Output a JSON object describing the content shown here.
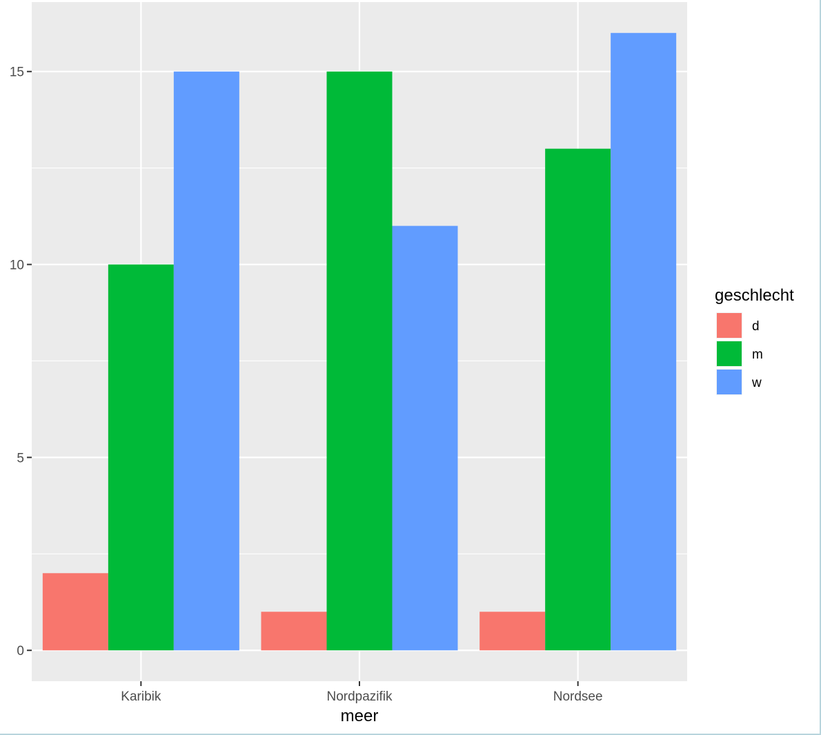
{
  "chart_data": {
    "type": "bar",
    "title": "",
    "xlabel": "meer",
    "ylabel": "",
    "categories": [
      "Karibik",
      "Nordpazifik",
      "Nordsee"
    ],
    "series": [
      {
        "name": "d",
        "color": "#F8766D",
        "values": [
          2,
          1,
          1
        ]
      },
      {
        "name": "m",
        "color": "#00BA38",
        "values": [
          10,
          15,
          13
        ]
      },
      {
        "name": "w",
        "color": "#619CFF",
        "values": [
          15,
          11,
          16
        ]
      }
    ],
    "ylim": [
      -0.8,
      16.8
    ],
    "yticks": [
      0,
      5,
      10,
      15
    ],
    "yticks_labels": [
      "0",
      "5",
      "10",
      "15"
    ],
    "grid": true,
    "legend": {
      "title": "geschlecht",
      "placement": "right"
    },
    "colors": {
      "panel_background": "#EBEBEB",
      "grid": "#FFFFFF",
      "tick_text": "#4D4D4D",
      "axis_ticks": "#333333"
    }
  }
}
